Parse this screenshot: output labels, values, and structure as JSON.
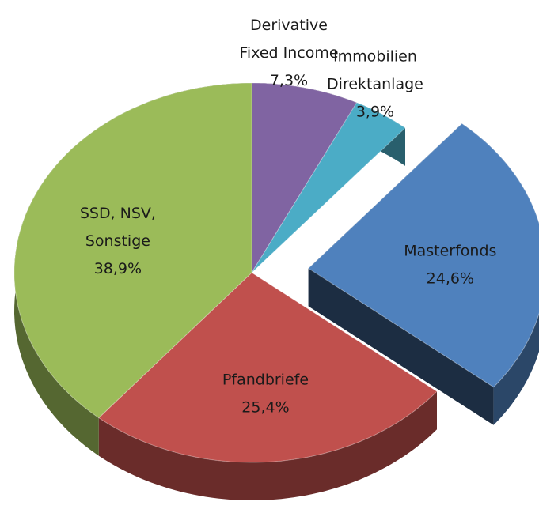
{
  "chart_data": {
    "type": "pie",
    "categories": [
      [
        "Derivative",
        "Fixed Income"
      ],
      [
        "Immobilien",
        "Direktanlage"
      ],
      [
        "Masterfonds"
      ],
      [
        "Pfandbriefe"
      ],
      [
        "SSD, NSV,",
        "Sonstige"
      ]
    ],
    "values": [
      7.3,
      3.9,
      24.6,
      25.4,
      38.9
    ],
    "value_labels": [
      "7,3%",
      "3,9%",
      "24,6%",
      "25,4%",
      "38,9%"
    ],
    "colors": [
      "#8064a2",
      "#4bacc6",
      "#4f81bd",
      "#c0504d",
      "#9bbb59"
    ],
    "exploded": [
      false,
      false,
      true,
      false,
      false
    ]
  }
}
